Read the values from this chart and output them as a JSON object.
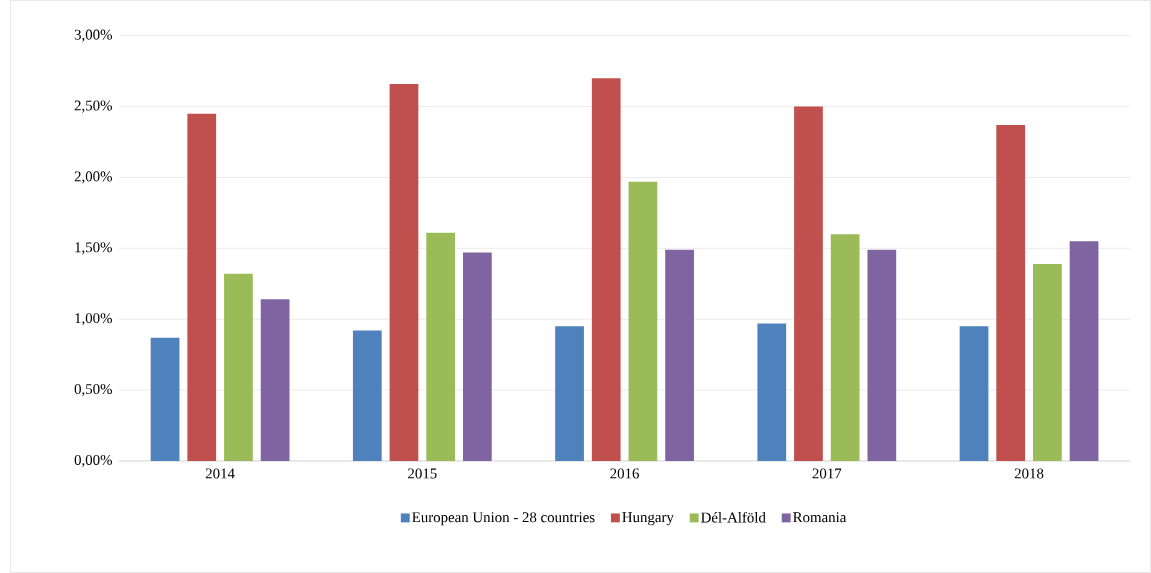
{
  "chart_data": {
    "type": "bar",
    "categories": [
      "2014",
      "2015",
      "2016",
      "2017",
      "2018"
    ],
    "series": [
      {
        "name": "European Union - 28 countries",
        "color": "#4f81bd",
        "values": [
          0.87,
          0.92,
          0.95,
          0.97,
          0.95
        ]
      },
      {
        "name": "Hungary",
        "color": "#c0504d",
        "values": [
          2.45,
          2.66,
          2.7,
          2.5,
          2.37
        ]
      },
      {
        "name": "Dél-Alföld",
        "color": "#9bbb59",
        "values": [
          1.32,
          1.61,
          1.97,
          1.6,
          1.39
        ]
      },
      {
        "name": "Romania",
        "color": "#8064a2",
        "values": [
          1.14,
          1.47,
          1.49,
          1.49,
          1.55
        ]
      }
    ],
    "ylim": [
      0,
      3
    ],
    "yticks": [
      {
        "value": 0,
        "label": "0,00%"
      },
      {
        "value": 0.5,
        "label": "0,50%"
      },
      {
        "value": 1,
        "label": "1,00%"
      },
      {
        "value": 1.5,
        "label": "1,50%"
      },
      {
        "value": 2,
        "label": "2,00%"
      },
      {
        "value": 2.5,
        "label": "2,50%"
      },
      {
        "value": 3,
        "label": "3,00%"
      }
    ],
    "grid": "y",
    "legend": "bottom"
  }
}
